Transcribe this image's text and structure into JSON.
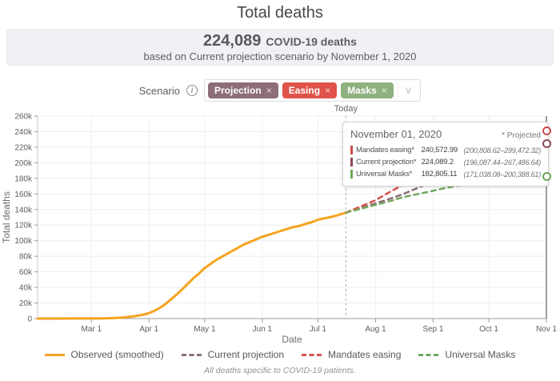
{
  "page": {
    "title": "Total deaths"
  },
  "summary": {
    "value": "224,089",
    "value_label": "COVID-19 deaths",
    "subtitle": "based on Current projection scenario by November 1, 2020"
  },
  "scenario": {
    "label": "Scenario",
    "info_icon_glyph": "i",
    "remove_symbol": "×",
    "dropdown_icon": "∨",
    "chips": [
      {
        "label": "Projection",
        "color": "#8c6d78"
      },
      {
        "label": "Easing",
        "color": "#e0534a"
      },
      {
        "label": "Masks",
        "color": "#8fb180"
      }
    ]
  },
  "tooltip": {
    "date": "November 01, 2020",
    "projected_note": "* Projected",
    "rows": [
      {
        "label": "Mandates easing*",
        "value": "240,572.99",
        "ci": "(200,808.62–299,472.32)",
        "color": "#cc4b4b"
      },
      {
        "label": "Current projection*",
        "value": "224,089.2",
        "ci": "(196,087.44–267,486.64)",
        "color": "#8d4a56"
      },
      {
        "label": "Universal Masks*",
        "value": "182,805.11",
        "ci": "(171,038.08–200,388.61)",
        "color": "#6fa85a"
      }
    ]
  },
  "legend": {
    "items": [
      {
        "label": "Observed (smoothed)",
        "color": "#f5a31f",
        "style": "solid"
      },
      {
        "label": "Current projection",
        "color": "#8b6f76",
        "style": "dashed"
      },
      {
        "label": "Mandates easing",
        "color": "#d9534f",
        "style": "dashed"
      },
      {
        "label": "Universal Masks",
        "color": "#74a85e",
        "style": "dashed"
      }
    ]
  },
  "footnote": "All deaths specific to COVID-19 patients.",
  "chart_data": {
    "type": "line",
    "title": "Total deaths",
    "xlabel": "Date",
    "ylabel": "Total deaths",
    "ylim_k": [
      0,
      260
    ],
    "y_tick_step_k": 20,
    "x_total_days": 274,
    "x_ticks": [
      {
        "label": "Mar 1",
        "day": 29
      },
      {
        "label": "Apr 1",
        "day": 60
      },
      {
        "label": "May 1",
        "day": 90
      },
      {
        "label": "Jun 1",
        "day": 121
      },
      {
        "label": "Jul 1",
        "day": 151
      },
      {
        "label": "Aug 1",
        "day": 182
      },
      {
        "label": "Sep 1",
        "day": 213
      },
      {
        "label": "Oct 1",
        "day": 243
      },
      {
        "label": "Nov 1",
        "day": 274
      }
    ],
    "today": {
      "label": "Today",
      "day": 166
    },
    "hover_day": 274,
    "series": [
      {
        "name": "Observed (smoothed)",
        "color": "#f5a31f",
        "dash": false,
        "endpoint_marker": false,
        "points_day_valk": [
          [
            0,
            0.05
          ],
          [
            10,
            0.05
          ],
          [
            20,
            0.08
          ],
          [
            29,
            0.1
          ],
          [
            36,
            0.3
          ],
          [
            42,
            0.7
          ],
          [
            47,
            1.5
          ],
          [
            52,
            3
          ],
          [
            57,
            5
          ],
          [
            60,
            7
          ],
          [
            63,
            10
          ],
          [
            66,
            14
          ],
          [
            69,
            19
          ],
          [
            72,
            25
          ],
          [
            75,
            31
          ],
          [
            78,
            38
          ],
          [
            81,
            45
          ],
          [
            84,
            52
          ],
          [
            87,
            58
          ],
          [
            90,
            65
          ],
          [
            93,
            70
          ],
          [
            96,
            75
          ],
          [
            99,
            79
          ],
          [
            102,
            83
          ],
          [
            105,
            87
          ],
          [
            108,
            91
          ],
          [
            111,
            95
          ],
          [
            114,
            98
          ],
          [
            117,
            101
          ],
          [
            121,
            105
          ],
          [
            125,
            108
          ],
          [
            129,
            111
          ],
          [
            133,
            114
          ],
          [
            137,
            117
          ],
          [
            141,
            119
          ],
          [
            145,
            122
          ],
          [
            148,
            124
          ],
          [
            151,
            127
          ],
          [
            155,
            129
          ],
          [
            159,
            131
          ],
          [
            162,
            133
          ],
          [
            166,
            136
          ]
        ]
      },
      {
        "name": "Current projection",
        "color": "#8b6f76",
        "dash": true,
        "endpoint_marker": true,
        "endpoint_color": "#8d4a56",
        "points_day_valk": [
          [
            166,
            136
          ],
          [
            174,
            142
          ],
          [
            182,
            148
          ],
          [
            190,
            154
          ],
          [
            197,
            160
          ],
          [
            205,
            168
          ],
          [
            213,
            176
          ],
          [
            220,
            183
          ],
          [
            228,
            190
          ],
          [
            235,
            196
          ],
          [
            243,
            202
          ],
          [
            251,
            208
          ],
          [
            258,
            213
          ],
          [
            266,
            219
          ],
          [
            274,
            224.089
          ]
        ]
      },
      {
        "name": "Mandates easing",
        "color": "#d9534f",
        "dash": true,
        "endpoint_marker": true,
        "endpoint_color": "#cc4b4b",
        "points_day_valk": [
          [
            166,
            136
          ],
          [
            174,
            144
          ],
          [
            182,
            152
          ],
          [
            190,
            163
          ],
          [
            197,
            172
          ],
          [
            205,
            182
          ],
          [
            213,
            191
          ],
          [
            220,
            199
          ],
          [
            228,
            206
          ],
          [
            235,
            213
          ],
          [
            243,
            219
          ],
          [
            251,
            226
          ],
          [
            258,
            231
          ],
          [
            266,
            236
          ],
          [
            274,
            240.573
          ]
        ]
      },
      {
        "name": "Universal Masks",
        "color": "#74a85e",
        "dash": true,
        "endpoint_marker": true,
        "endpoint_color": "#6fa85a",
        "points_day_valk": [
          [
            166,
            136
          ],
          [
            174,
            141
          ],
          [
            182,
            146
          ],
          [
            190,
            151
          ],
          [
            197,
            156
          ],
          [
            205,
            160
          ],
          [
            213,
            164
          ],
          [
            220,
            168
          ],
          [
            228,
            171
          ],
          [
            235,
            174
          ],
          [
            243,
            176
          ],
          [
            251,
            178
          ],
          [
            258,
            180
          ],
          [
            266,
            181.5
          ],
          [
            274,
            182.805
          ]
        ]
      }
    ]
  }
}
